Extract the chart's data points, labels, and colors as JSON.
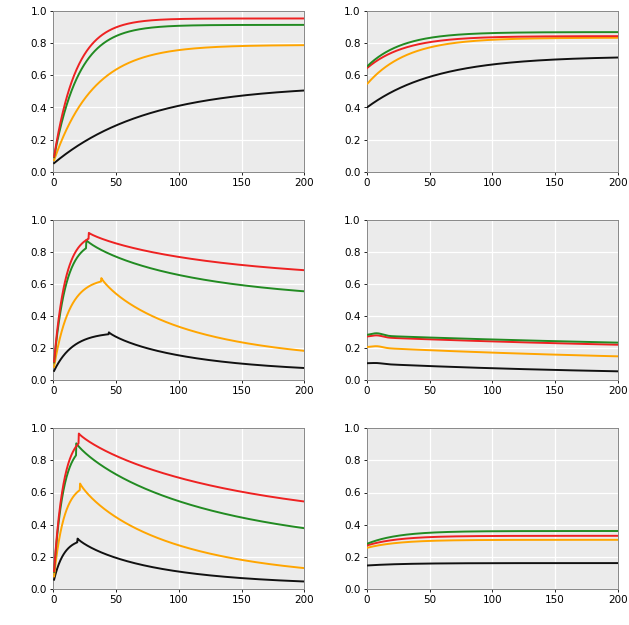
{
  "colors": {
    "red": "#EE2222",
    "green": "#228B22",
    "orange": "#FFA500",
    "black": "#111111"
  },
  "bg_color": "#EBEBEB",
  "grid_color": "#FFFFFF",
  "ylim": [
    0.0,
    1.0
  ],
  "xlim": [
    0,
    200
  ],
  "xticks": [
    0,
    50,
    100,
    150,
    200
  ],
  "yticks": [
    0.0,
    0.2,
    0.4,
    0.6,
    0.8,
    1.0
  ],
  "tick_fontsize": 7.5,
  "lw": 1.4
}
